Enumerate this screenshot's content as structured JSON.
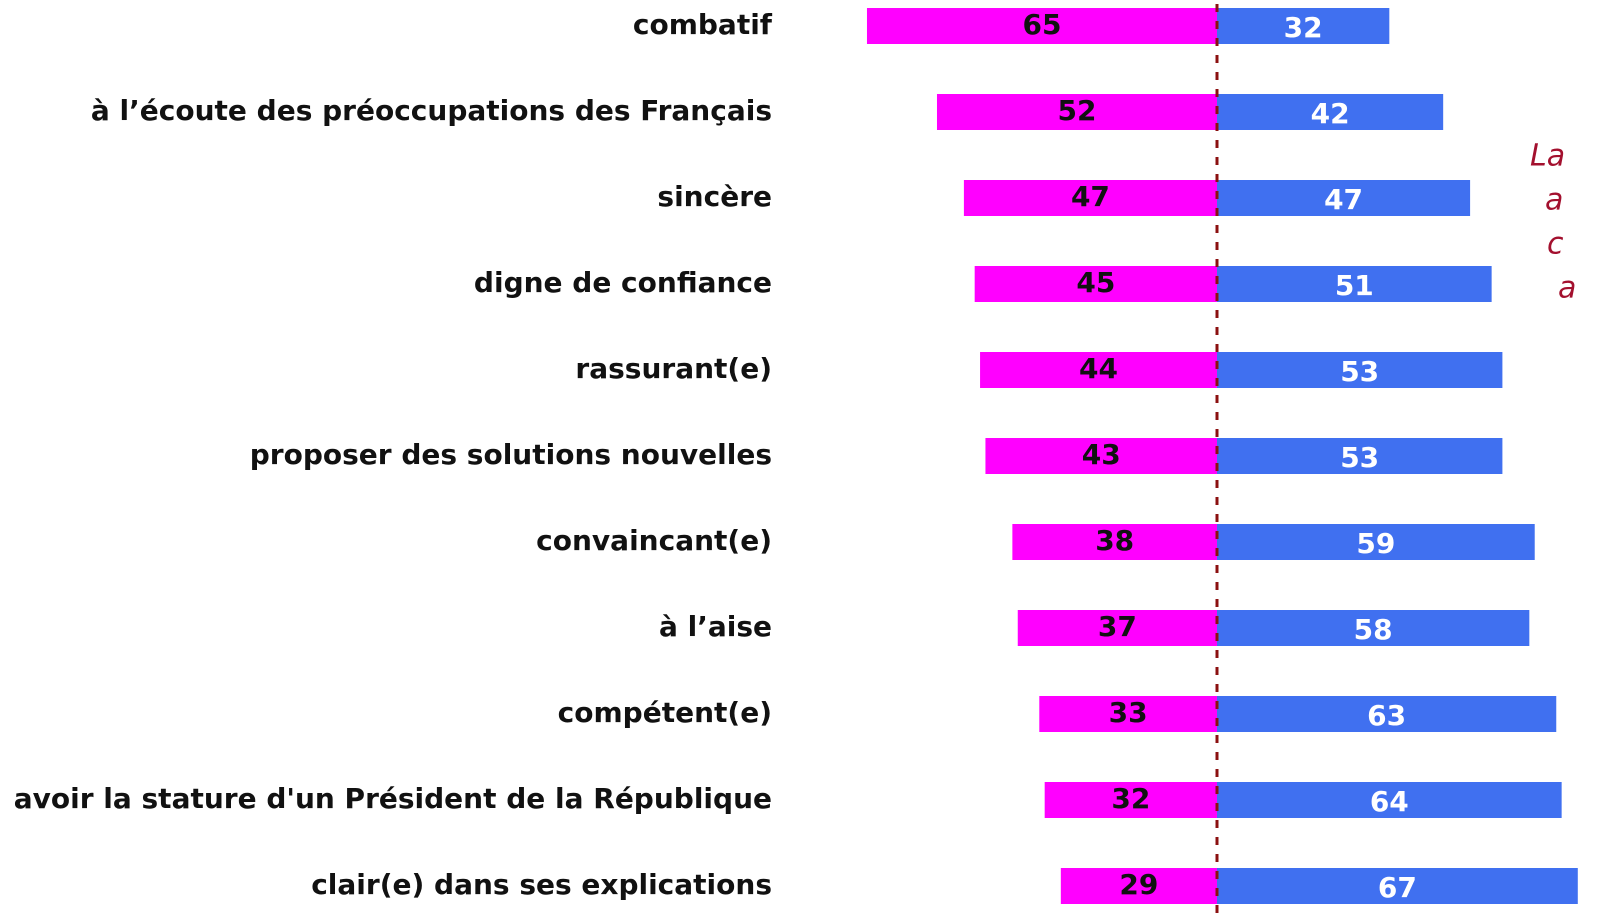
{
  "chart_data": {
    "type": "diverging_bar",
    "categories": [
      "combatif",
      "à l’écoute des préoccupations des Français",
      "sincère",
      "digne de confiance",
      "rassurant(e)",
      "proposer des solutions nouvelles",
      "convaincant(e)",
      "à l’aise",
      "compétent(e)",
      "avoir la stature d'un Président de la République",
      "clair(e) dans ses explications"
    ],
    "series": [
      {
        "color": "#ff00ff",
        "values": [
          65,
          52,
          47,
          45,
          44,
          43,
          38,
          37,
          33,
          32,
          29
        ]
      },
      {
        "color": "#4070f0",
        "values": [
          32,
          42,
          47,
          51,
          53,
          53,
          59,
          58,
          63,
          64,
          67
        ]
      }
    ],
    "annotation": [
      "La",
      "a",
      "c",
      "a"
    ]
  }
}
